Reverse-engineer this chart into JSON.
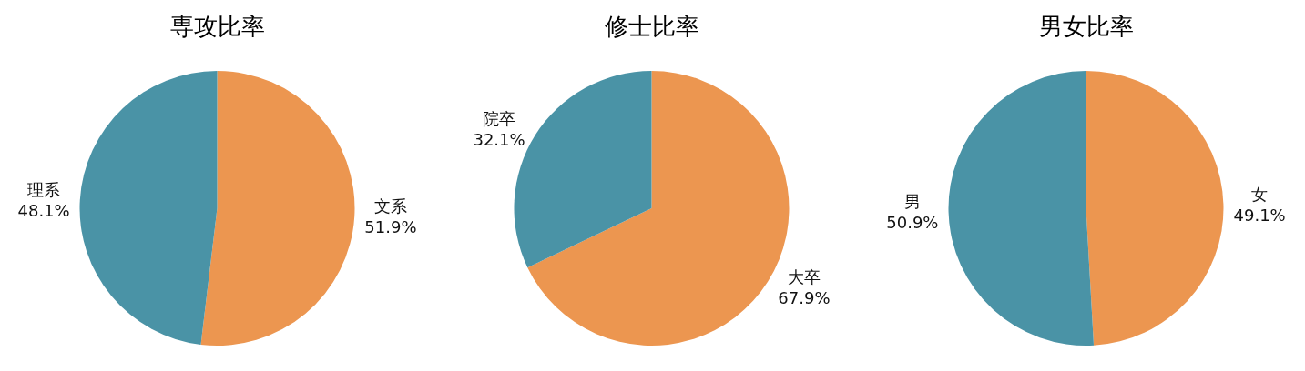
{
  "chart_data": [
    {
      "type": "pie",
      "title": "専攻比率",
      "categories": [
        "文系",
        "理系"
      ],
      "values": [
        51.9,
        48.1
      ],
      "value_labels": [
        "51.9%",
        "48.1%"
      ],
      "colors": [
        "#ec9650",
        "#4a93a6"
      ],
      "legend": false
    },
    {
      "type": "pie",
      "title": "修士比率",
      "categories": [
        "大卒",
        "院卒"
      ],
      "values": [
        67.9,
        32.1
      ],
      "value_labels": [
        "67.9%",
        "32.1%"
      ],
      "colors": [
        "#ec9650",
        "#4a93a6"
      ],
      "legend": false
    },
    {
      "type": "pie",
      "title": "男女比率",
      "categories": [
        "女",
        "男"
      ],
      "values": [
        49.1,
        50.9
      ],
      "value_labels": [
        "49.1%",
        "50.9%"
      ],
      "colors": [
        "#ec9650",
        "#4a93a6"
      ],
      "legend": false
    }
  ]
}
